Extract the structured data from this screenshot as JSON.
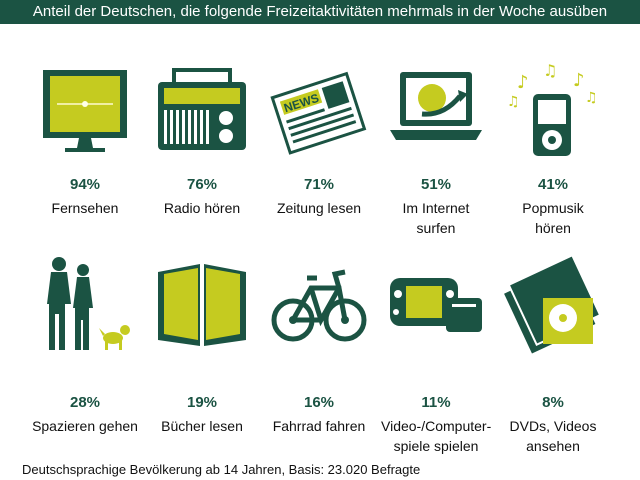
{
  "header": {
    "title": "Anteil der Deutschen, die folgende Freizeitaktivitäten mehrmals in der Woche ausüben"
  },
  "colors": {
    "header_bg": "#1b5343",
    "icon_dark": "#1b5343",
    "icon_accent": "#c5cb20",
    "percent": "#1b5343"
  },
  "chart_data": {
    "type": "pictogram",
    "title": "Anteil der Deutschen, die folgende Freizeitaktivitäten mehrmals in der Woche ausüben",
    "unit": "%",
    "items": [
      {
        "percent_label": "94%",
        "value": 94,
        "label_lines": [
          "Fernsehen"
        ],
        "icon": "tv-icon"
      },
      {
        "percent_label": "76%",
        "value": 76,
        "label_lines": [
          "Radio hören"
        ],
        "icon": "radio-icon"
      },
      {
        "percent_label": "71%",
        "value": 71,
        "label_lines": [
          "Zeitung lesen"
        ],
        "icon": "newspaper-icon"
      },
      {
        "percent_label": "51%",
        "value": 51,
        "label_lines": [
          "Im Internet",
          "surfen"
        ],
        "icon": "laptop-globe-icon"
      },
      {
        "percent_label": "41%",
        "value": 41,
        "label_lines": [
          "Popmusik",
          "hören"
        ],
        "icon": "mp3-player-icon"
      },
      {
        "percent_label": "28%",
        "value": 28,
        "label_lines": [
          "Spazieren gehen"
        ],
        "icon": "walking-couple-icon"
      },
      {
        "percent_label": "19%",
        "value": 19,
        "label_lines": [
          "Bücher lesen"
        ],
        "icon": "open-book-icon"
      },
      {
        "percent_label": "16%",
        "value": 16,
        "label_lines": [
          "Fahrrad fahren"
        ],
        "icon": "bicycle-icon"
      },
      {
        "percent_label": "11%",
        "value": 11,
        "label_lines": [
          "Video-/Computer-",
          "spiele spielen"
        ],
        "icon": "game-console-icon"
      },
      {
        "percent_label": "8%",
        "value": 8,
        "label_lines": [
          "DVDs, Videos",
          "ansehen"
        ],
        "icon": "dvd-icon"
      }
    ]
  },
  "footer": {
    "source": "Deutschsprachige Bevölkerung ab 14 Jahren, Basis: 23.020 Befragte"
  }
}
